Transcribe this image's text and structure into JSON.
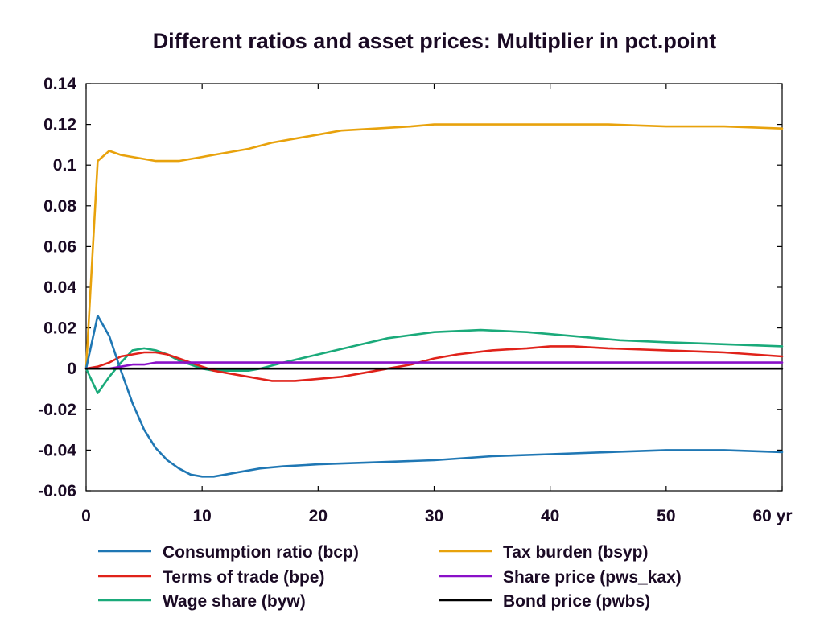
{
  "chart_data": {
    "type": "line",
    "title": "Different ratios and asset prices: Multiplier in pct.point",
    "xlabel": "",
    "ylabel": "",
    "x_unit_label": "yr",
    "xlim": [
      0,
      60
    ],
    "ylim": [
      -0.06,
      0.14
    ],
    "x_ticks": [
      0,
      10,
      20,
      30,
      40,
      50,
      60
    ],
    "x_tick_labels": [
      "0",
      "10",
      "20",
      "30",
      "40",
      "50",
      "60 yr"
    ],
    "y_ticks": [
      -0.06,
      -0.04,
      -0.02,
      0,
      0.02,
      0.04,
      0.06,
      0.08,
      0.1,
      0.12,
      0.14
    ],
    "y_tick_labels": [
      "-0.06",
      "-0.04",
      "-0.02",
      "0",
      "0.02",
      "0.04",
      "0.06",
      "0.08",
      "0.1",
      "0.12",
      "0.14"
    ],
    "grid": false,
    "legend_position": "bottom",
    "series": [
      {
        "name": "Consumption ratio (bcp)",
        "color": "#1f77b4",
        "legend_col": 0,
        "legend_row": 0,
        "x": [
          0,
          1,
          2,
          3,
          4,
          5,
          6,
          7,
          8,
          9,
          10,
          11,
          12,
          13,
          15,
          17,
          20,
          25,
          30,
          35,
          40,
          45,
          50,
          55,
          60
        ],
        "y": [
          0,
          0.026,
          0.016,
          -0.001,
          -0.017,
          -0.03,
          -0.039,
          -0.045,
          -0.049,
          -0.052,
          -0.053,
          -0.053,
          -0.052,
          -0.051,
          -0.049,
          -0.048,
          -0.047,
          -0.046,
          -0.045,
          -0.043,
          -0.042,
          -0.041,
          -0.04,
          -0.04,
          -0.041
        ]
      },
      {
        "name": "Terms of trade (bpe)",
        "color": "#e0221a",
        "legend_col": 0,
        "legend_row": 1,
        "x": [
          0,
          1,
          2,
          3,
          4,
          5,
          6,
          7,
          8,
          9,
          10,
          11,
          12,
          13,
          14,
          15,
          16,
          17,
          18,
          20,
          22,
          24,
          26,
          28,
          30,
          32,
          35,
          38,
          40,
          42,
          45,
          50,
          55,
          60
        ],
        "y": [
          0,
          0.001,
          0.003,
          0.006,
          0.007,
          0.008,
          0.008,
          0.007,
          0.005,
          0.003,
          0.001,
          -0.001,
          -0.002,
          -0.003,
          -0.004,
          -0.005,
          -0.006,
          -0.006,
          -0.006,
          -0.005,
          -0.004,
          -0.002,
          0.0,
          0.002,
          0.005,
          0.007,
          0.009,
          0.01,
          0.011,
          0.011,
          0.01,
          0.009,
          0.008,
          0.006
        ]
      },
      {
        "name": "Wage share (byw)",
        "color": "#1aaa7a",
        "legend_col": 0,
        "legend_row": 2,
        "x": [
          0,
          1,
          2,
          3,
          4,
          5,
          6,
          7,
          8,
          9,
          10,
          11,
          12,
          13,
          14,
          15,
          17,
          20,
          23,
          26,
          30,
          34,
          38,
          42,
          46,
          50,
          55,
          60
        ],
        "y": [
          0,
          -0.012,
          -0.004,
          0.003,
          0.009,
          0.01,
          0.009,
          0.007,
          0.004,
          0.002,
          0.0,
          -0.001,
          -0.001,
          -0.001,
          -0.001,
          0.0,
          0.003,
          0.007,
          0.011,
          0.015,
          0.018,
          0.019,
          0.018,
          0.016,
          0.014,
          0.013,
          0.012,
          0.011
        ]
      },
      {
        "name": "Tax burden (bsyp)",
        "color": "#e8a20c",
        "legend_col": 1,
        "legend_row": 0,
        "x": [
          0,
          1,
          2,
          3,
          4,
          5,
          6,
          7,
          8,
          9,
          10,
          12,
          14,
          16,
          18,
          20,
          22,
          25,
          28,
          30,
          35,
          40,
          45,
          50,
          55,
          60
        ],
        "y": [
          0,
          0.102,
          0.107,
          0.105,
          0.104,
          0.103,
          0.102,
          0.102,
          0.102,
          0.103,
          0.104,
          0.106,
          0.108,
          0.111,
          0.113,
          0.115,
          0.117,
          0.118,
          0.119,
          0.12,
          0.12,
          0.12,
          0.12,
          0.119,
          0.119,
          0.118
        ]
      },
      {
        "name": "Share price (pws_kax)",
        "color": "#8a10c8",
        "legend_col": 1,
        "legend_row": 1,
        "x": [
          0,
          1,
          2,
          3,
          4,
          5,
          6,
          7,
          10,
          20,
          30,
          40,
          50,
          60
        ],
        "y": [
          0,
          0.0,
          0.0,
          0.001,
          0.002,
          0.002,
          0.003,
          0.003,
          0.003,
          0.003,
          0.003,
          0.003,
          0.003,
          0.003
        ]
      },
      {
        "name": "Bond price (pwbs)",
        "color": "#000000",
        "legend_col": 1,
        "legend_row": 2,
        "x": [
          0,
          60
        ],
        "y": [
          0,
          0
        ]
      }
    ]
  }
}
